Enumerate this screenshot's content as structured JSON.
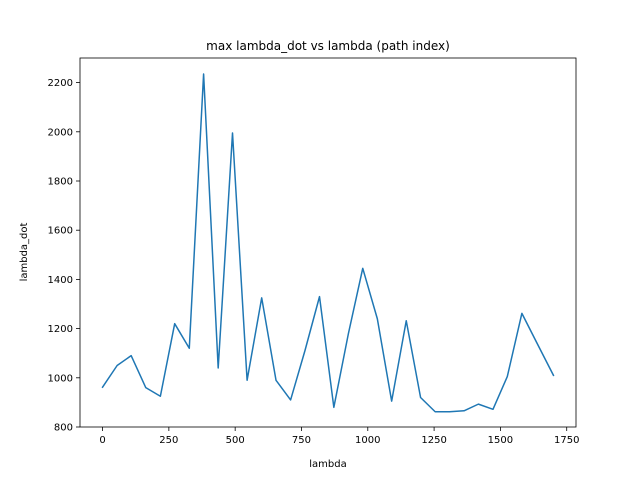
{
  "chart_data": {
    "type": "line",
    "title": "max lambda_dot vs lambda (path index)",
    "xlabel": "lambda",
    "ylabel": "lambda_dot",
    "xlim": [
      -85,
      1785
    ],
    "ylim": [
      800,
      2300
    ],
    "xticks": [
      0,
      250,
      500,
      750,
      1000,
      1250,
      1500,
      1750
    ],
    "yticks": [
      800,
      1000,
      1200,
      1400,
      1600,
      1800,
      2000,
      2200
    ],
    "grid": false,
    "color": "#1f77b4",
    "series": [
      {
        "x": [
          0,
          55,
          108,
          163,
          218,
          272,
          327,
          381,
          436,
          490,
          545,
          600,
          654,
          709,
          763,
          818,
          872,
          927,
          981,
          1036,
          1090,
          1145,
          1199,
          1254,
          1308,
          1363,
          1417,
          1472,
          1526,
          1581,
          1636,
          1700
        ],
        "values": [
          962,
          1050,
          1090,
          960,
          925,
          1220,
          1120,
          2235,
          1040,
          1995,
          990,
          1325,
          990,
          910,
          1110,
          1330,
          880,
          1180,
          1445,
          1240,
          905,
          1232,
          920,
          862,
          862,
          866,
          893,
          872,
          1005,
          1262,
          1145,
          1010
        ]
      }
    ]
  }
}
